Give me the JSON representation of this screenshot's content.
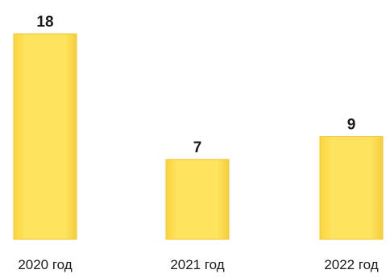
{
  "chart_data": {
    "type": "bar",
    "categories": [
      "2020 год",
      "2021 год",
      "2022 год"
    ],
    "values": [
      18,
      7,
      9
    ],
    "title": "",
    "xlabel": "",
    "ylabel": "",
    "ylim": [
      0,
      18
    ],
    "grid": false,
    "legend": "none",
    "bar_color": "#fde15a",
    "bar_edge_color": "#f2c632",
    "text_color": "#1a1a1a"
  }
}
